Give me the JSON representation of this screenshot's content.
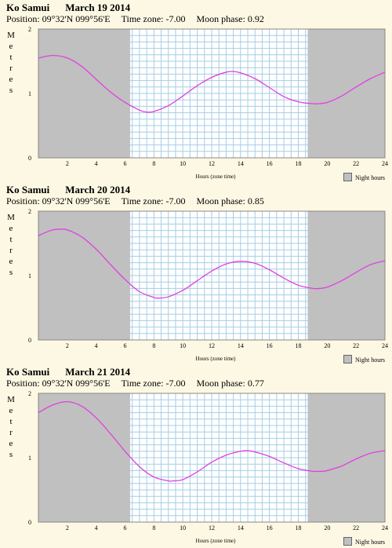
{
  "common": {
    "ylabel": "Metres",
    "xlabel": "Hours (zone time)",
    "legend_label": "Night hours",
    "colors": {
      "background": "#fdf8e3",
      "night": "#c0c0c0",
      "grid": "#a6cde6",
      "curve": "#e040e0",
      "day_bg": "#ffffff"
    }
  },
  "panels": [
    {
      "location": "Ko Samui",
      "date": "March 19 2014",
      "position": "Position: 09°32'N 099°56'E",
      "timezone": "Time zone:  -7.00",
      "moonphase": "Moon phase: 0.92"
    },
    {
      "location": "Ko Samui",
      "date": "March 20 2014",
      "position": "Position: 09°32'N 099°56'E",
      "timezone": "Time zone:  -7.00",
      "moonphase": "Moon phase: 0.85"
    },
    {
      "location": "Ko Samui",
      "date": "March 21 2014",
      "position": "Position: 09°32'N 099°56'E",
      "timezone": "Time zone:  -7.00",
      "moonphase": "Moon phase: 0.77"
    }
  ],
  "chart_data": [
    {
      "type": "line",
      "title": "Ko Samui March 19 2014",
      "xlabel": "Hours (zone time)",
      "ylabel": "Metres",
      "xlim": [
        0,
        24
      ],
      "ylim": [
        0,
        2
      ],
      "xticks": [
        "2",
        "4",
        "6",
        "8",
        "10",
        "12",
        "14",
        "16",
        "18",
        "20",
        "22",
        "24"
      ],
      "yticks": [
        "0",
        "1",
        "2"
      ],
      "night_hours": [
        [
          0,
          6.35
        ],
        [
          18.65,
          24
        ]
      ],
      "series": [
        {
          "x": [
            0,
            1,
            2,
            3,
            4,
            5,
            6,
            7,
            7.5,
            8,
            9,
            10,
            11,
            12,
            13,
            13.5,
            14,
            15,
            16,
            17,
            18,
            19,
            19.3,
            20,
            21,
            22,
            23,
            24
          ],
          "y": [
            1.55,
            1.59,
            1.55,
            1.42,
            1.22,
            1.02,
            0.86,
            0.74,
            0.71,
            0.72,
            0.81,
            0.96,
            1.12,
            1.25,
            1.33,
            1.34,
            1.32,
            1.23,
            1.09,
            0.95,
            0.87,
            0.84,
            0.84,
            0.86,
            0.96,
            1.1,
            1.23,
            1.33
          ]
        }
      ]
    },
    {
      "type": "line",
      "title": "Ko Samui March 20 2014",
      "xlabel": "Hours (zone time)",
      "ylabel": "Metres",
      "xlim": [
        0,
        24
      ],
      "ylim": [
        0,
        2
      ],
      "xticks": [
        "2",
        "4",
        "6",
        "8",
        "10",
        "12",
        "14",
        "16",
        "18",
        "20",
        "22",
        "24"
      ],
      "yticks": [
        "0",
        "1",
        "2"
      ],
      "night_hours": [
        [
          0,
          6.35
        ],
        [
          18.65,
          24
        ]
      ],
      "series": [
        {
          "x": [
            0,
            0.5,
            1,
            1.5,
            2,
            3,
            4,
            5,
            6,
            7,
            8,
            8.3,
            9,
            10,
            11,
            12,
            13,
            14,
            15,
            16,
            17,
            18,
            19,
            19.5,
            20,
            21,
            22,
            23,
            24
          ],
          "y": [
            1.62,
            1.67,
            1.71,
            1.72,
            1.71,
            1.6,
            1.41,
            1.17,
            0.94,
            0.75,
            0.66,
            0.65,
            0.67,
            0.77,
            0.92,
            1.07,
            1.18,
            1.22,
            1.19,
            1.09,
            0.96,
            0.85,
            0.8,
            0.8,
            0.82,
            0.92,
            1.05,
            1.17,
            1.23
          ]
        }
      ]
    },
    {
      "type": "line",
      "title": "Ko Samui March 21 2014",
      "xlabel": "Hours (zone time)",
      "ylabel": "Metres",
      "xlim": [
        0,
        24
      ],
      "ylim": [
        0,
        2
      ],
      "xticks": [
        "2",
        "4",
        "6",
        "8",
        "10",
        "12",
        "14",
        "16",
        "18",
        "20",
        "22",
        "24"
      ],
      "yticks": [
        "0",
        "1",
        "2"
      ],
      "night_hours": [
        [
          0,
          6.35
        ],
        [
          18.65,
          24
        ]
      ],
      "series": [
        {
          "x": [
            0,
            1,
            2,
            3,
            4,
            5,
            6,
            7,
            8,
            9,
            9.3,
            10,
            11,
            12,
            13,
            14,
            14.5,
            15,
            16,
            17,
            18,
            19,
            19.7,
            20,
            21,
            22,
            23,
            24
          ],
          "y": [
            1.7,
            1.82,
            1.87,
            1.8,
            1.62,
            1.37,
            1.1,
            0.86,
            0.7,
            0.64,
            0.64,
            0.66,
            0.78,
            0.93,
            1.04,
            1.1,
            1.11,
            1.09,
            1.02,
            0.92,
            0.83,
            0.79,
            0.79,
            0.8,
            0.87,
            0.98,
            1.07,
            1.11
          ]
        }
      ]
    }
  ]
}
